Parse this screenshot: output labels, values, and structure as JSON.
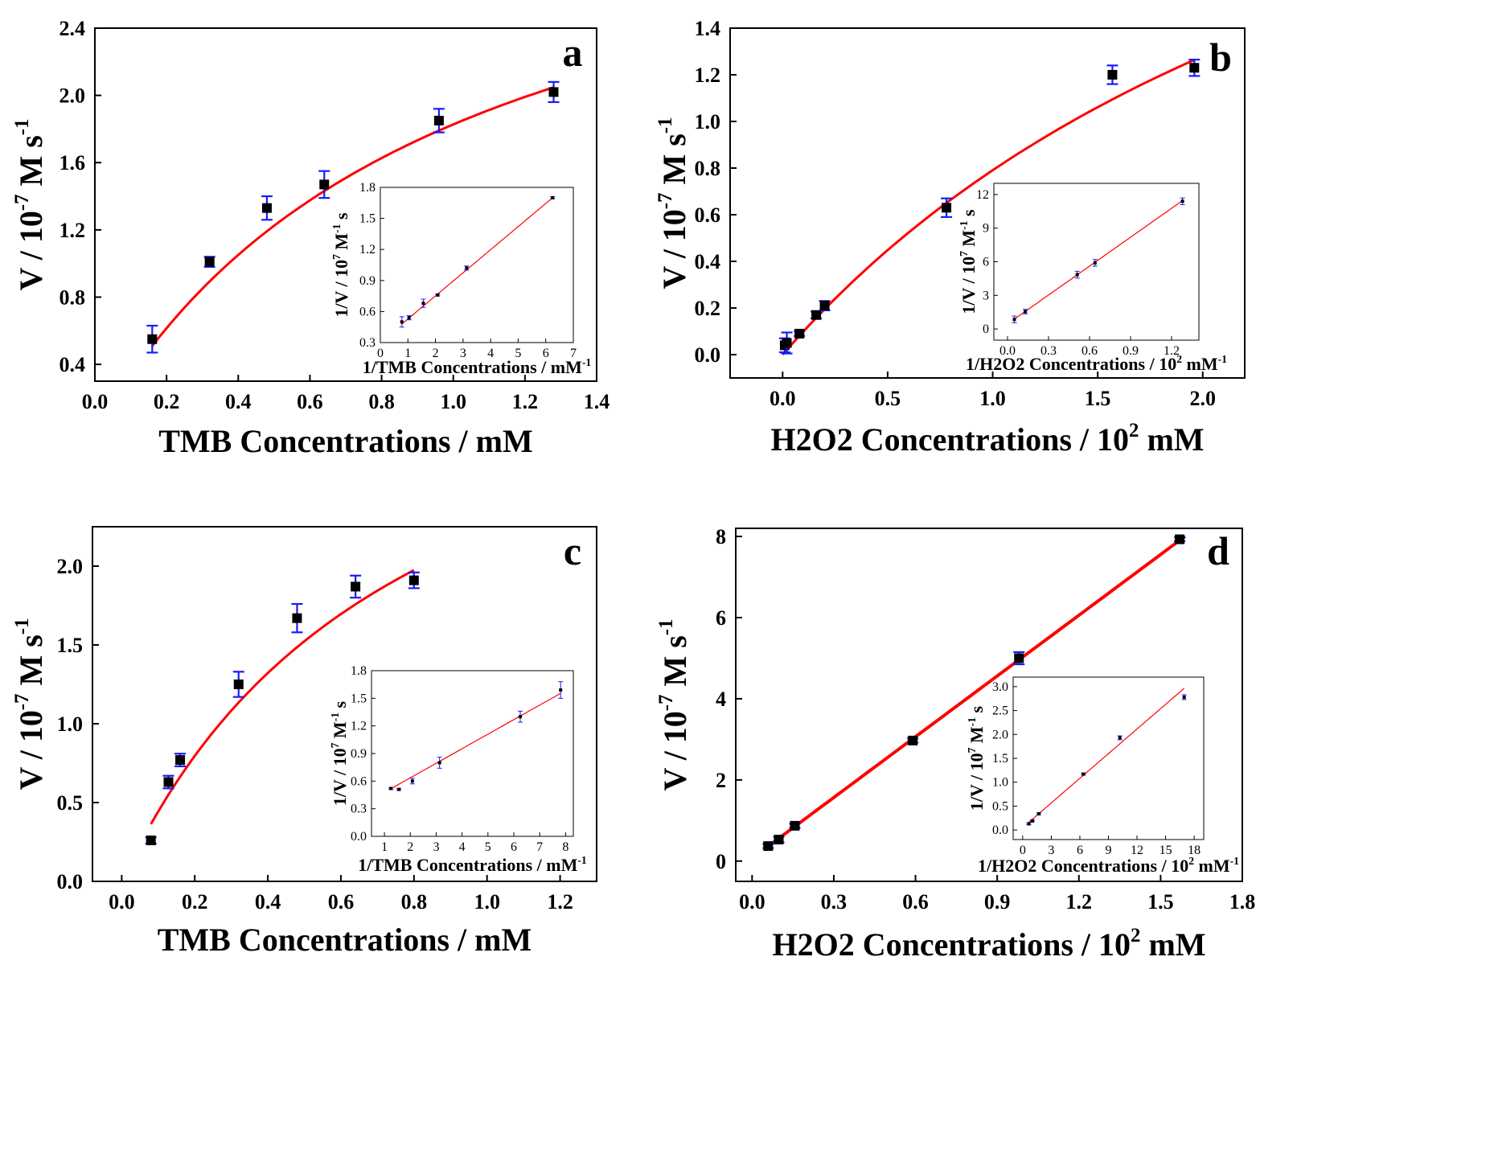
{
  "figure": {
    "description_units": "V in 10^-7 M s^-1"
  },
  "chart_data": [
    {
      "type": "scatter",
      "panel": "a",
      "xlabel": "TMB Concentrations / mM",
      "ylabel": "V / 10^-7 M s^-1",
      "xlim": [
        0,
        1.4
      ],
      "ylim": [
        0.3,
        2.4
      ],
      "xticks": [
        0.0,
        0.2,
        0.4,
        0.6,
        0.8,
        1.0,
        1.2,
        1.4
      ],
      "xtick_labels": [
        "0.0",
        "0.2",
        "0.4",
        "0.6",
        "0.8",
        "1.0",
        "1.2",
        "1.4"
      ],
      "yticks": [
        0.4,
        0.8,
        1.2,
        1.6,
        2.0,
        2.4
      ],
      "ytick_labels": [
        "0.4",
        "0.8",
        "1.2",
        "1.6",
        "2.0",
        "2.4"
      ],
      "x": [
        0.16,
        0.32,
        0.48,
        0.64,
        0.96,
        1.28
      ],
      "y": [
        0.55,
        1.01,
        1.33,
        1.47,
        1.85,
        2.02
      ],
      "err": [
        0.08,
        0.03,
        0.07,
        0.08,
        0.07,
        0.06
      ],
      "fit": {
        "model": "michaelis-menten",
        "vmax": 3.6,
        "km": 0.97,
        "x_range": [
          0.16,
          1.28
        ]
      },
      "inset": {
        "type": "scatter",
        "xlabel": "1/TMB Concentrations / mM^-1",
        "ylabel": "1/V / 10^7 M^-1 s",
        "xlim": [
          0,
          7
        ],
        "ylim": [
          0.3,
          1.8
        ],
        "xticks": [
          0,
          1,
          2,
          3,
          4,
          5,
          6,
          7
        ],
        "xtick_labels": [
          "0",
          "1",
          "2",
          "3",
          "4",
          "5",
          "6",
          "7"
        ],
        "yticks": [
          0.3,
          0.6,
          0.9,
          1.2,
          1.5,
          1.8
        ],
        "ytick_labels": [
          "0.3",
          "0.6",
          "0.9",
          "1.2",
          "1.5",
          "1.8"
        ],
        "x": [
          0.78,
          1.04,
          1.56,
          2.08,
          3.13,
          6.25
        ],
        "y": [
          0.5,
          0.54,
          0.68,
          0.76,
          1.02,
          1.7
        ],
        "err": [
          0.05,
          0.02,
          0.04,
          0.01,
          0.02,
          0.01
        ],
        "fit": {
          "slope": 0.2232,
          "intercept": 0.305,
          "x_range": [
            0.78,
            6.25
          ]
        }
      }
    },
    {
      "type": "scatter",
      "panel": "b",
      "xlabel": "H2O2 Concentrations / 10^2 mM",
      "ylabel": "V / 10^-7 M s^-1",
      "xlim": [
        -0.25,
        2.2
      ],
      "ylim": [
        -0.1,
        1.4
      ],
      "xticks": [
        0.0,
        0.5,
        1.0,
        1.5,
        2.0
      ],
      "xtick_labels": [
        "0.0",
        "0.5",
        "1.0",
        "1.5",
        "2.0"
      ],
      "yticks": [
        0.0,
        0.2,
        0.4,
        0.6,
        0.8,
        1.0,
        1.2,
        1.4
      ],
      "ytick_labels": [
        "0.0",
        "0.2",
        "0.4",
        "0.6",
        "0.8",
        "1.0",
        "1.2",
        "1.4"
      ],
      "x": [
        0.01,
        0.02,
        0.08,
        0.16,
        0.2,
        0.78,
        1.57,
        1.96
      ],
      "y": [
        0.04,
        0.05,
        0.09,
        0.17,
        0.21,
        0.63,
        1.2,
        1.23
      ],
      "err": [
        0.03,
        0.045,
        0.01,
        0.015,
        0.02,
        0.04,
        0.04,
        0.035
      ],
      "fit": {
        "model": "michaelis-menten",
        "vmax": 3.36,
        "km": 3.25,
        "x_range": [
          0.0,
          1.96
        ]
      },
      "inset": {
        "type": "scatter",
        "xlabel": "1/H2O2 Concentrations / 10^2 mM^-1",
        "ylabel": "1/V / 10^7 M^-1 s",
        "xlim": [
          -0.1,
          1.4
        ],
        "ylim": [
          -1,
          13
        ],
        "xticks": [
          0.0,
          0.3,
          0.6,
          0.9,
          1.2
        ],
        "xtick_labels": [
          "0.0",
          "0.3",
          "0.6",
          "0.9",
          "1.2"
        ],
        "yticks": [
          0,
          3,
          6,
          9,
          12
        ],
        "ytick_labels": [
          "0",
          "3",
          "6",
          "9",
          "12"
        ],
        "x": [
          0.05,
          0.13,
          0.51,
          0.64,
          1.28
        ],
        "y": [
          0.85,
          1.55,
          4.85,
          5.9,
          11.4
        ],
        "err": [
          0.3,
          0.2,
          0.3,
          0.3,
          0.3
        ],
        "fit": {
          "slope": 8.6,
          "intercept": 0.45,
          "x_range": [
            0.05,
            1.28
          ]
        }
      }
    },
    {
      "type": "scatter",
      "panel": "c",
      "xlabel": "TMB Concentrations / mM",
      "ylabel": "V / 10^-7 M s^-1",
      "xlim": [
        -0.08,
        1.3
      ],
      "ylim": [
        0.0,
        2.25
      ],
      "xticks": [
        0.0,
        0.2,
        0.4,
        0.6,
        0.8,
        1.0,
        1.2
      ],
      "xtick_labels": [
        "0.0",
        "0.2",
        "0.4",
        "0.6",
        "0.8",
        "1.0",
        "1.2"
      ],
      "yticks": [
        0.0,
        0.5,
        1.0,
        1.5,
        2.0
      ],
      "ytick_labels": [
        "0.0",
        "0.5",
        "1.0",
        "1.5",
        "2.0"
      ],
      "x": [
        0.08,
        0.128,
        0.16,
        0.32,
        0.48,
        0.64,
        0.8
      ],
      "y": [
        0.26,
        0.63,
        0.77,
        1.25,
        1.67,
        1.87,
        1.91
      ],
      "err": [
        0.02,
        0.04,
        0.04,
        0.08,
        0.09,
        0.07,
        0.05
      ],
      "fit": {
        "model": "michaelis-menten",
        "vmax": 3.9,
        "km": 0.78,
        "x_range": [
          0.08,
          0.8
        ]
      },
      "inset": {
        "type": "scatter",
        "xlabel": "1/TMB Concentrations / mM^-1",
        "ylabel": "1/V / 10^7 M^-1 s",
        "xlim": [
          0.5,
          8.3
        ],
        "ylim": [
          0.0,
          1.8
        ],
        "xticks": [
          1,
          2,
          3,
          4,
          5,
          6,
          7,
          8
        ],
        "xtick_labels": [
          "1",
          "2",
          "3",
          "4",
          "5",
          "6",
          "7",
          "8"
        ],
        "yticks": [
          0.0,
          0.3,
          0.6,
          0.9,
          1.2,
          1.5,
          1.8
        ],
        "ytick_labels": [
          "0.0",
          "0.3",
          "0.6",
          "0.9",
          "1.2",
          "1.5",
          "1.8"
        ],
        "x": [
          1.25,
          1.56,
          2.08,
          3.13,
          6.25,
          7.81
        ],
        "y": [
          0.52,
          0.51,
          0.6,
          0.8,
          1.3,
          1.59
        ],
        "err": [
          0.01,
          0.01,
          0.03,
          0.06,
          0.06,
          0.09
        ],
        "fit": {
          "slope": 0.158,
          "intercept": 0.32,
          "x_range": [
            1.25,
            7.81
          ]
        }
      }
    },
    {
      "type": "scatter",
      "panel": "d",
      "xlabel": "H2O2 Concentrations / 10^2 mM",
      "ylabel": "V / 10^-7 M s^-1",
      "xlim": [
        -0.06,
        1.8
      ],
      "ylim": [
        -0.5,
        8.2
      ],
      "xticks": [
        0.0,
        0.3,
        0.6,
        0.9,
        1.2,
        1.5,
        1.8
      ],
      "xtick_labels": [
        "0.0",
        "0.3",
        "0.6",
        "0.9",
        "1.2",
        "1.5",
        "1.8"
      ],
      "yticks": [
        0,
        2,
        4,
        6,
        8
      ],
      "ytick_labels": [
        "0",
        "2",
        "4",
        "6",
        "8"
      ],
      "x": [
        0.059,
        0.098,
        0.157,
        0.59,
        0.98,
        1.57
      ],
      "y": [
        0.37,
        0.53,
        0.87,
        2.97,
        5.0,
        7.93
      ],
      "err": [
        0.05,
        0.07,
        0.05,
        0.05,
        0.15,
        0.05
      ],
      "fit": {
        "model": "linear",
        "slope": 4.99,
        "intercept": 0.07,
        "x_range": [
          0.059,
          1.59
        ]
      },
      "inset": {
        "type": "scatter",
        "xlabel": "1/H2O2 Concentrations / 10^2 mM^-1",
        "ylabel": "1/V / 10^7 M^-1 s",
        "xlim": [
          -1,
          19
        ],
        "ylim": [
          -0.2,
          3.2
        ],
        "xticks": [
          0,
          3,
          6,
          9,
          12,
          15,
          18
        ],
        "xtick_labels": [
          "0",
          "3",
          "6",
          "9",
          "12",
          "15",
          "18"
        ],
        "yticks": [
          0.0,
          0.5,
          1.0,
          1.5,
          2.0,
          2.5,
          3.0
        ],
        "ytick_labels": [
          "0.0",
          "0.5",
          "1.0",
          "1.5",
          "2.0",
          "2.5",
          "3.0"
        ],
        "x": [
          0.64,
          1.02,
          1.69,
          6.37,
          10.2,
          16.95
        ],
        "y": [
          0.13,
          0.19,
          0.34,
          1.17,
          1.93,
          2.78
        ],
        "err": [
          0.02,
          0.02,
          0.02,
          0.02,
          0.04,
          0.05
        ],
        "fit": {
          "slope": 0.172,
          "intercept": 0.05,
          "x_range": [
            0.64,
            16.95
          ]
        }
      }
    }
  ],
  "panel_labels": [
    "a",
    "b",
    "c",
    "d"
  ],
  "colors": {
    "data": "#000000",
    "error": "#1a1aff",
    "fit": "#ff0000"
  }
}
